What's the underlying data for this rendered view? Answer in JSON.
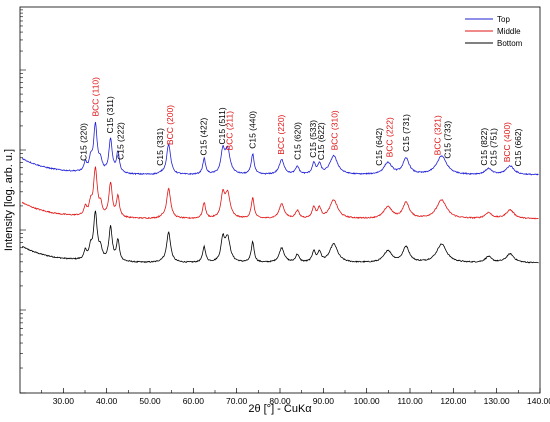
{
  "chart_data": {
    "type": "line",
    "xlabel": "2θ [°] - CuKα",
    "ylabel": "Intensity [log. arb. u.]",
    "xlim": [
      20,
      140
    ],
    "x_ticks": [
      "30.00",
      "40.00",
      "50.00",
      "60.00",
      "70.00",
      "80.00",
      "90.00",
      "100.00",
      "110.00",
      "120.00",
      "130.00",
      "140.00"
    ],
    "grid": false,
    "legend_position": "top-right",
    "series": [
      {
        "name": "Top",
        "color": "#1f1fd6",
        "offset": 0
      },
      {
        "name": "Middle",
        "color": "#e01414",
        "offset": 1
      },
      {
        "name": "Bottom",
        "color": "#000000",
        "offset": 2
      }
    ],
    "peaks": [
      {
        "x": 35.1,
        "a": 0.45,
        "w": 0.35
      },
      {
        "x": 36.3,
        "a": 0.55,
        "w": 0.4
      },
      {
        "x": 37.4,
        "a": 2.4,
        "w": 0.5
      },
      {
        "x": 38.6,
        "a": 0.5,
        "w": 0.4
      },
      {
        "x": 40.9,
        "a": 1.7,
        "w": 0.45
      },
      {
        "x": 42.6,
        "a": 1.05,
        "w": 0.4
      },
      {
        "x": 52.7,
        "a": 0.05,
        "w": 0.5
      },
      {
        "x": 54.3,
        "a": 1.55,
        "w": 0.55
      },
      {
        "x": 62.5,
        "a": 0.8,
        "w": 0.4
      },
      {
        "x": 66.8,
        "a": 1.1,
        "w": 0.5
      },
      {
        "x": 67.9,
        "a": 1.25,
        "w": 0.7
      },
      {
        "x": 73.7,
        "a": 1.05,
        "w": 0.4
      },
      {
        "x": 80.4,
        "a": 0.75,
        "w": 0.7
      },
      {
        "x": 84.0,
        "a": 0.4,
        "w": 0.5
      },
      {
        "x": 87.8,
        "a": 0.55,
        "w": 0.45
      },
      {
        "x": 89.1,
        "a": 0.5,
        "w": 0.45
      },
      {
        "x": 92.4,
        "a": 0.95,
        "w": 1.1
      },
      {
        "x": 104.9,
        "a": 0.6,
        "w": 1.1
      },
      {
        "x": 109.1,
        "a": 0.8,
        "w": 0.9
      },
      {
        "x": 117.3,
        "a": 0.95,
        "w": 1.4
      },
      {
        "x": 128.1,
        "a": 0.3,
        "w": 0.9
      },
      {
        "x": 133.1,
        "a": 0.45,
        "w": 1.1
      }
    ],
    "annotations": [
      {
        "text": "BCC (110)",
        "x": 37.4,
        "color": "red"
      },
      {
        "text": "C15 (220)",
        "x": 34.6,
        "color": "black"
      },
      {
        "text": "C15 (311)",
        "x": 40.8,
        "color": "black"
      },
      {
        "text": "C15 (222)",
        "x": 43.2,
        "color": "black"
      },
      {
        "text": "BCC (200)",
        "x": 54.6,
        "color": "red"
      },
      {
        "text": "C15 (331)",
        "x": 52.3,
        "color": "black"
      },
      {
        "text": "C15 (422)",
        "x": 62.3,
        "color": "black"
      },
      {
        "text": "C15 (511)",
        "x": 66.6,
        "color": "black"
      },
      {
        "text": "BCC (211)",
        "x": 68.4,
        "color": "red"
      },
      {
        "text": "C15 (440)",
        "x": 73.6,
        "color": "black"
      },
      {
        "text": "BCC (220)",
        "x": 80.2,
        "color": "red"
      },
      {
        "text": "C15 (620)",
        "x": 84.0,
        "color": "black"
      },
      {
        "text": "C15 (533)",
        "x": 87.6,
        "color": "black"
      },
      {
        "text": "C15 (622)",
        "x": 89.5,
        "color": "black"
      },
      {
        "text": "BCC (310)",
        "x": 92.6,
        "color": "red"
      },
      {
        "text": "C15 (642)",
        "x": 102.8,
        "color": "black"
      },
      {
        "text": "BCC (222)",
        "x": 105.3,
        "color": "red"
      },
      {
        "text": "C15 (731)",
        "x": 109.1,
        "color": "black"
      },
      {
        "text": "BCC (321)",
        "x": 116.4,
        "color": "red"
      },
      {
        "text": "C15 (733)",
        "x": 118.6,
        "color": "black"
      },
      {
        "text": "C15 (822)",
        "x": 127.1,
        "color": "black"
      },
      {
        "text": "C15 (751)",
        "x": 129.3,
        "color": "black"
      },
      {
        "text": "BCC (400)",
        "x": 132.4,
        "color": "red"
      },
      {
        "text": "C15 (662)",
        "x": 134.9,
        "color": "black"
      }
    ]
  }
}
